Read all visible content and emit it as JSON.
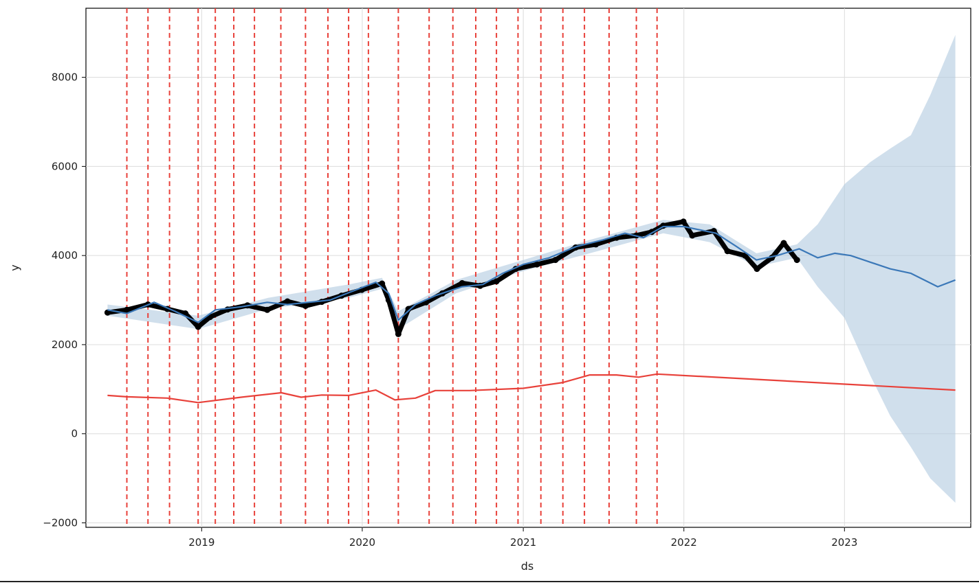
{
  "chart_data": {
    "type": "line",
    "xlabel": "ds",
    "ylabel": "y",
    "x_range": [
      "2018-04-13",
      "2023-10-15"
    ],
    "ylim": [
      -2100,
      9550
    ],
    "grid": true,
    "x_ticks": [
      "2019",
      "2020",
      "2021",
      "2022",
      "2023"
    ],
    "y_ticks": [
      -2000,
      0,
      2000,
      4000,
      6000,
      8000
    ],
    "series": [
      {
        "role": "observed",
        "style": "black-dots",
        "color": "#000000",
        "x": [
          "2018-06-01",
          "2018-07-15",
          "2018-09-01",
          "2018-10-15",
          "2018-11-25",
          "2018-12-24",
          "2019-01-20",
          "2019-03-01",
          "2019-04-15",
          "2019-05-30",
          "2019-07-15",
          "2019-08-25",
          "2019-10-01",
          "2019-11-15",
          "2019-12-31",
          "2020-02-15",
          "2020-03-01",
          "2020-03-23",
          "2020-04-15",
          "2020-05-25",
          "2020-07-01",
          "2020-08-15",
          "2020-09-25",
          "2020-11-01",
          "2020-12-15",
          "2021-02-01",
          "2021-03-15",
          "2021-04-30",
          "2021-06-15",
          "2021-08-01",
          "2021-09-15",
          "2021-10-20",
          "2021-11-15",
          "2021-12-31",
          "2022-01-20",
          "2022-03-10",
          "2022-04-10",
          "2022-05-20",
          "2022-06-16",
          "2022-07-20",
          "2022-08-16",
          "2022-09-15"
        ],
        "y": [
          2720,
          2780,
          2900,
          2800,
          2700,
          2400,
          2620,
          2790,
          2880,
          2780,
          2970,
          2870,
          2960,
          3100,
          3230,
          3370,
          3000,
          2240,
          2800,
          2950,
          3150,
          3380,
          3320,
          3420,
          3700,
          3800,
          3900,
          4180,
          4250,
          4400,
          4450,
          4530,
          4670,
          4760,
          4450,
          4550,
          4100,
          4000,
          3700,
          3950,
          4280,
          3900
        ]
      },
      {
        "role": "forecast",
        "style": "line",
        "color": "#3b78b8",
        "x": [
          "2018-06-01",
          "2018-07-15",
          "2018-09-15",
          "2018-11-01",
          "2018-12-24",
          "2019-02-01",
          "2019-04-01",
          "2019-05-30",
          "2019-07-15",
          "2019-09-01",
          "2019-10-20",
          "2019-12-10",
          "2020-02-01",
          "2020-03-01",
          "2020-03-23",
          "2020-05-01",
          "2020-06-15",
          "2020-08-15",
          "2020-10-01",
          "2020-11-15",
          "2021-01-01",
          "2021-03-01",
          "2021-05-01",
          "2021-07-01",
          "2021-08-20",
          "2021-10-01",
          "2021-11-15",
          "2022-01-01",
          "2022-03-15",
          "2022-05-01",
          "2022-06-15",
          "2022-08-01",
          "2022-09-20",
          "2022-11-01",
          "2022-12-10",
          "2023-01-15",
          "2023-03-01",
          "2023-04-15",
          "2023-06-01",
          "2023-08-01",
          "2023-09-10"
        ],
        "y": [
          2780,
          2700,
          2950,
          2750,
          2500,
          2780,
          2850,
          2950,
          2900,
          2950,
          3000,
          3200,
          3400,
          3150,
          2550,
          2900,
          3100,
          3300,
          3350,
          3600,
          3800,
          3950,
          4200,
          4350,
          4500,
          4400,
          4650,
          4650,
          4500,
          4200,
          3900,
          4000,
          4150,
          3950,
          4050,
          4000,
          3850,
          3700,
          3600,
          3300,
          3450
        ]
      },
      {
        "role": "forecast-upper",
        "style": "band-edge",
        "color": "#b0c9e0",
        "x": [
          "2018-06-01",
          "2018-12-24",
          "2019-06-01",
          "2019-12-01",
          "2020-02-15",
          "2020-03-23",
          "2020-08-01",
          "2021-01-01",
          "2021-06-01",
          "2021-11-15",
          "2022-03-01",
          "2022-06-15",
          "2022-09-15",
          "2022-11-01",
          "2023-01-01",
          "2023-03-01",
          "2023-04-15",
          "2023-06-01",
          "2023-07-15",
          "2023-09-10"
        ],
        "y": [
          2900,
          2650,
          3050,
          3350,
          3500,
          2750,
          3450,
          3900,
          4350,
          4800,
          4700,
          4050,
          4250,
          4700,
          5600,
          6100,
          6400,
          6700,
          7600,
          8950
        ]
      },
      {
        "role": "forecast-lower",
        "style": "band-edge",
        "color": "#b0c9e0",
        "x": [
          "2018-06-01",
          "2018-12-24",
          "2019-06-01",
          "2019-12-01",
          "2020-02-15",
          "2020-03-23",
          "2020-08-01",
          "2021-01-01",
          "2021-06-01",
          "2021-11-15",
          "2022-03-01",
          "2022-06-15",
          "2022-09-15",
          "2022-11-01",
          "2023-01-01",
          "2023-03-01",
          "2023-04-15",
          "2023-06-01",
          "2023-07-15",
          "2023-09-10"
        ],
        "y": [
          2650,
          2350,
          2800,
          3050,
          3250,
          2350,
          3150,
          3650,
          4050,
          4500,
          4300,
          3750,
          3950,
          3300,
          2600,
          1300,
          400,
          -300,
          -1000,
          -1550
        ]
      },
      {
        "role": "trend",
        "style": "line",
        "color": "#e8413a",
        "x": [
          "2018-06-01",
          "2018-07-15",
          "2018-10-15",
          "2018-12-24",
          "2019-04-01",
          "2019-07-01",
          "2019-08-15",
          "2019-10-01",
          "2019-12-01",
          "2020-02-01",
          "2020-03-15",
          "2020-05-01",
          "2020-06-15",
          "2020-09-01",
          "2021-01-01",
          "2021-04-01",
          "2021-06-01",
          "2021-08-01",
          "2021-09-20",
          "2021-11-01",
          "2023-09-10"
        ],
        "y": [
          860,
          830,
          800,
          700,
          820,
          920,
          820,
          870,
          860,
          980,
          760,
          800,
          970,
          970,
          1020,
          1150,
          1320,
          1320,
          1270,
          1340,
          980
        ]
      }
    ],
    "changepoints": [
      "2018-07-15",
      "2018-09-01",
      "2018-10-20",
      "2018-12-24",
      "2019-02-01",
      "2019-03-15",
      "2019-05-01",
      "2019-06-30",
      "2019-08-25",
      "2019-10-15",
      "2019-12-01",
      "2020-01-15",
      "2020-03-23",
      "2020-06-01",
      "2020-07-25",
      "2020-09-15",
      "2020-11-01",
      "2020-12-20",
      "2021-02-10",
      "2021-04-01",
      "2021-05-20",
      "2021-07-15",
      "2021-09-15",
      "2021-11-01"
    ],
    "changepoint_color": "#e8413a"
  }
}
